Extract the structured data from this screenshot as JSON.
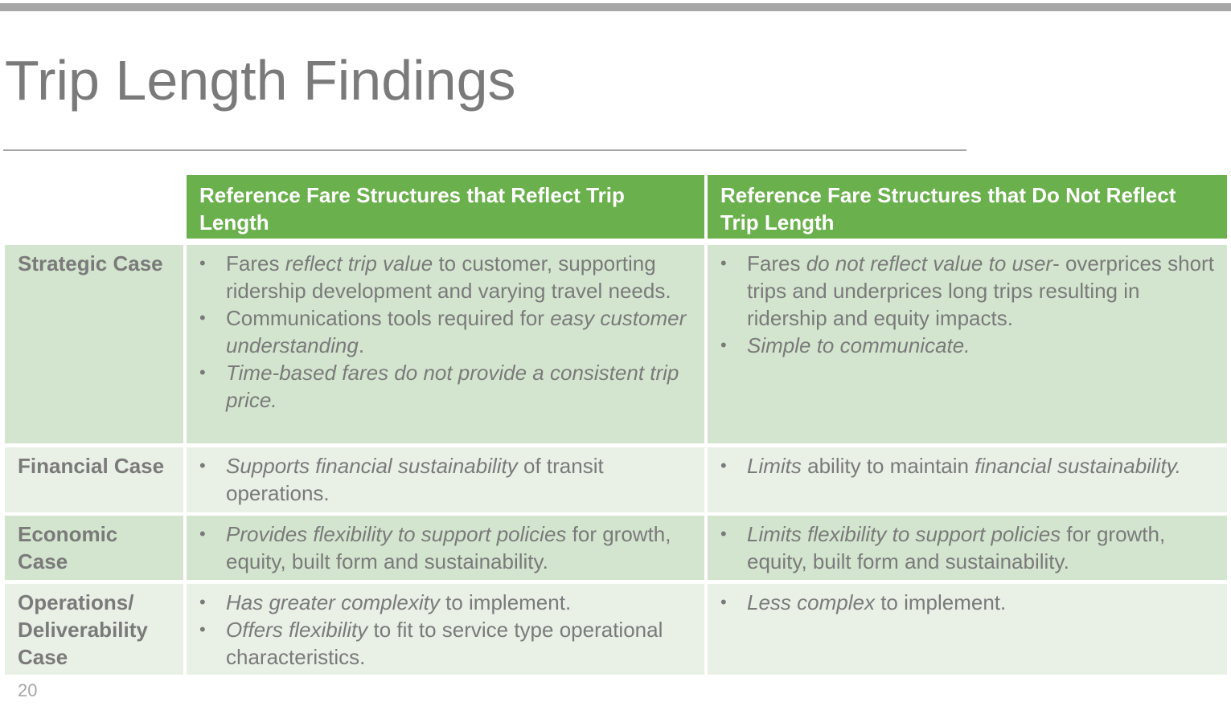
{
  "title": "Trip Length Findings",
  "page_number": "20",
  "colors": {
    "header": "#6ab04c",
    "row_dark": "#d4e5cf",
    "row_light": "#e9f0e6",
    "text": "#7a7a7a"
  },
  "table": {
    "headers": [
      "Reference Fare Structures that  Reflect Trip Length",
      "Reference Fare Structures that  Do Not Reflect Trip Length"
    ],
    "rows": [
      {
        "label": "Strategic Case",
        "col1": [
          [
            {
              "t": "Fares ",
              "i": false
            },
            {
              "t": "reflect trip value",
              "i": true
            },
            {
              "t": " to customer, supporting ridership development and varying travel needs.",
              "i": false
            }
          ],
          [
            {
              "t": "Communications tools required for ",
              "i": false
            },
            {
              "t": "easy customer understanding",
              "i": true
            },
            {
              "t": ".",
              "i": false
            }
          ],
          [
            {
              "t": "Time-based fares do not provide a consistent trip price.",
              "i": true
            }
          ]
        ],
        "col2": [
          [
            {
              "t": "Fares ",
              "i": false
            },
            {
              "t": "do not reflect value to user",
              "i": true
            },
            {
              "t": "- overprices short trips and underprices long trips resulting in ridership and equity impacts.",
              "i": false
            }
          ],
          [
            {
              "t": "Simple to communicate.",
              "i": true
            }
          ]
        ]
      },
      {
        "label": "Financial Case",
        "col1": [
          [
            {
              "t": "Supports financial sustainability",
              "i": true
            },
            {
              "t": " of transit operations.",
              "i": false
            }
          ]
        ],
        "col2": [
          [
            {
              "t": "Limits",
              "i": true
            },
            {
              "t": " ability to maintain ",
              "i": false
            },
            {
              "t": "financial sustainability.",
              "i": true
            }
          ]
        ]
      },
      {
        "label": "Economic Case",
        "col1": [
          [
            {
              "t": "Provides flexibility to support policies",
              "i": true
            },
            {
              "t": " for growth, equity, built form and sustainability.",
              "i": false
            }
          ]
        ],
        "col2": [
          [
            {
              "t": "Limits flexibility to support policies",
              "i": true
            },
            {
              "t": " for growth, equity, built form and sustainability.",
              "i": false
            }
          ]
        ]
      },
      {
        "label": "Operations/ Deliverability Case",
        "col1": [
          [
            {
              "t": "Has greater complexity",
              "i": true
            },
            {
              "t": " to implement.",
              "i": false
            }
          ],
          [
            {
              "t": "Offers flexibility",
              "i": true
            },
            {
              "t": " to fit to service type operational characteristics.",
              "i": false
            }
          ]
        ],
        "col2": [
          [
            {
              "t": "Less complex",
              "i": true
            },
            {
              "t": " to implement.",
              "i": false
            }
          ]
        ]
      }
    ]
  }
}
